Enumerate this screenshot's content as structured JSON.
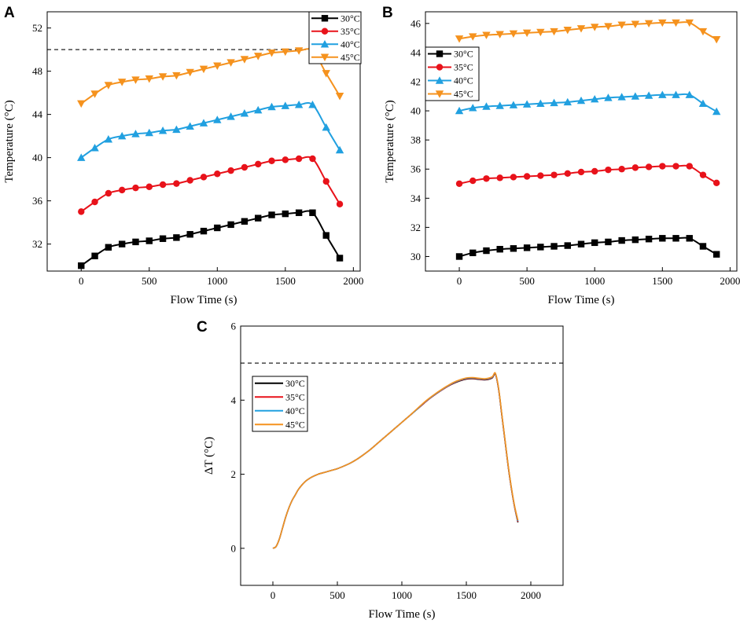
{
  "series_colors": {
    "30°C": "#000000",
    "35°C": "#e8121a",
    "40°C": "#21a0e0",
    "45°C": "#f5921e"
  },
  "chart_data": [
    {
      "panel": "A",
      "type": "line",
      "xlabel": "Flow Time (s)",
      "ylabel": "Temperature (°C)",
      "xlim": [
        -250,
        2050
      ],
      "ylim": [
        29.5,
        53.5
      ],
      "xticks": [
        0,
        500,
        1000,
        1500,
        2000
      ],
      "yticks": [
        32,
        36,
        40,
        44,
        48,
        52
      ],
      "reference_line": 50,
      "legend_position": "top-right",
      "series": [
        {
          "name": "30°C",
          "marker": "square",
          "x": [
            0,
            100,
            200,
            300,
            400,
            500,
            600,
            700,
            800,
            900,
            1000,
            1100,
            1200,
            1300,
            1400,
            1500,
            1600,
            1700,
            1800,
            1900
          ],
          "values": [
            30.0,
            30.9,
            31.7,
            32.0,
            32.2,
            32.3,
            32.5,
            32.6,
            32.9,
            33.2,
            33.5,
            33.8,
            34.1,
            34.4,
            34.7,
            34.8,
            34.9,
            34.9,
            32.8,
            30.7
          ]
        },
        {
          "name": "35°C",
          "marker": "circle",
          "x": [
            0,
            100,
            200,
            300,
            400,
            500,
            600,
            700,
            800,
            900,
            1000,
            1100,
            1200,
            1300,
            1400,
            1500,
            1600,
            1700,
            1800,
            1900
          ],
          "values": [
            35.0,
            35.9,
            36.7,
            37.0,
            37.2,
            37.3,
            37.5,
            37.6,
            37.9,
            38.2,
            38.5,
            38.8,
            39.1,
            39.4,
            39.7,
            39.8,
            39.9,
            39.9,
            37.8,
            35.7
          ]
        },
        {
          "name": "40°C",
          "marker": "triangle-up",
          "x": [
            0,
            100,
            200,
            300,
            400,
            500,
            600,
            700,
            800,
            900,
            1000,
            1100,
            1200,
            1300,
            1400,
            1500,
            1600,
            1700,
            1800,
            1900
          ],
          "values": [
            40.0,
            40.9,
            41.7,
            42.0,
            42.2,
            42.3,
            42.5,
            42.6,
            42.9,
            43.2,
            43.5,
            43.8,
            44.1,
            44.4,
            44.7,
            44.8,
            44.9,
            44.9,
            42.8,
            40.7
          ]
        },
        {
          "name": "45°C",
          "marker": "triangle-down",
          "x": [
            0,
            100,
            200,
            300,
            400,
            500,
            600,
            700,
            800,
            900,
            1000,
            1100,
            1200,
            1300,
            1400,
            1500,
            1600,
            1700,
            1800,
            1900
          ],
          "values": [
            45.0,
            45.9,
            46.7,
            47.0,
            47.2,
            47.3,
            47.5,
            47.6,
            47.9,
            48.2,
            48.5,
            48.8,
            49.1,
            49.4,
            49.7,
            49.8,
            49.9,
            49.9,
            47.8,
            45.7
          ]
        }
      ]
    },
    {
      "panel": "B",
      "type": "line",
      "xlabel": "Flow Time (s)",
      "ylabel": "Temperature (°C)",
      "xlim": [
        -250,
        2050
      ],
      "ylim": [
        29.0,
        46.8
      ],
      "xticks": [
        0,
        500,
        1000,
        1500,
        2000
      ],
      "yticks": [
        30,
        32,
        34,
        36,
        38,
        40,
        42,
        44,
        46
      ],
      "legend_position": "top-left",
      "series": [
        {
          "name": "30°C",
          "marker": "square",
          "x": [
            0,
            100,
            200,
            300,
            400,
            500,
            600,
            700,
            800,
            900,
            1000,
            1100,
            1200,
            1300,
            1400,
            1500,
            1600,
            1700,
            1800,
            1900
          ],
          "values": [
            30.0,
            30.25,
            30.4,
            30.5,
            30.55,
            30.6,
            30.65,
            30.7,
            30.75,
            30.85,
            30.95,
            31.0,
            31.1,
            31.15,
            31.2,
            31.25,
            31.25,
            31.25,
            30.7,
            30.15
          ]
        },
        {
          "name": "35°C",
          "marker": "circle",
          "x": [
            0,
            100,
            200,
            300,
            400,
            500,
            600,
            700,
            800,
            900,
            1000,
            1100,
            1200,
            1300,
            1400,
            1500,
            1600,
            1700,
            1800,
            1900
          ],
          "values": [
            35.0,
            35.2,
            35.35,
            35.4,
            35.45,
            35.5,
            35.55,
            35.6,
            35.7,
            35.8,
            35.85,
            35.95,
            36.0,
            36.1,
            36.15,
            36.2,
            36.2,
            36.2,
            35.6,
            35.05
          ]
        },
        {
          "name": "40°C",
          "marker": "triangle-up",
          "x": [
            0,
            100,
            200,
            300,
            400,
            500,
            600,
            700,
            800,
            900,
            1000,
            1100,
            1200,
            1300,
            1400,
            1500,
            1600,
            1700,
            1800,
            1900
          ],
          "values": [
            40.0,
            40.2,
            40.3,
            40.35,
            40.4,
            40.45,
            40.5,
            40.55,
            40.6,
            40.7,
            40.8,
            40.9,
            40.95,
            41.0,
            41.05,
            41.1,
            41.1,
            41.1,
            40.5,
            39.95
          ]
        },
        {
          "name": "45°C",
          "marker": "triangle-down",
          "x": [
            0,
            100,
            200,
            300,
            400,
            500,
            600,
            700,
            800,
            900,
            1000,
            1100,
            1200,
            1300,
            1400,
            1500,
            1600,
            1700,
            1800,
            1900
          ],
          "values": [
            44.95,
            45.1,
            45.2,
            45.25,
            45.3,
            45.35,
            45.4,
            45.45,
            45.55,
            45.65,
            45.75,
            45.8,
            45.9,
            45.95,
            46.0,
            46.05,
            46.05,
            46.05,
            45.45,
            44.9
          ]
        }
      ]
    },
    {
      "panel": "C",
      "type": "line",
      "xlabel": "Flow Time (s)",
      "ylabel": "ΔT (°C)",
      "xlim": [
        -250,
        2250
      ],
      "ylim": [
        -1,
        6
      ],
      "xticks": [
        0,
        500,
        1000,
        1500,
        2000
      ],
      "yticks": [
        0,
        2,
        4,
        6
      ],
      "reference_line": 5,
      "legend_position": "center-left",
      "series": [
        {
          "name": "30°C",
          "marker": "none",
          "x": [
            0,
            25,
            50,
            75,
            100,
            125,
            150,
            175,
            200,
            250,
            300,
            350,
            400,
            450,
            500,
            550,
            600,
            650,
            700,
            750,
            800,
            850,
            900,
            950,
            1000,
            1050,
            1100,
            1150,
            1200,
            1250,
            1300,
            1350,
            1400,
            1450,
            1500,
            1550,
            1600,
            1650,
            1700,
            1725,
            1750,
            1775,
            1800,
            1825,
            1850,
            1875,
            1900
          ],
          "values": [
            0,
            0.05,
            0.25,
            0.55,
            0.85,
            1.1,
            1.3,
            1.45,
            1.6,
            1.8,
            1.92,
            2.0,
            2.05,
            2.1,
            2.15,
            2.22,
            2.3,
            2.4,
            2.52,
            2.65,
            2.8,
            2.95,
            3.1,
            3.25,
            3.4,
            3.55,
            3.7,
            3.85,
            4.0,
            4.13,
            4.25,
            4.36,
            4.45,
            4.52,
            4.57,
            4.58,
            4.56,
            4.55,
            4.6,
            4.7,
            4.3,
            3.6,
            2.9,
            2.2,
            1.6,
            1.1,
            0.7
          ]
        },
        {
          "name": "35°C",
          "marker": "none",
          "x": [
            0,
            25,
            50,
            75,
            100,
            125,
            150,
            175,
            200,
            250,
            300,
            350,
            400,
            450,
            500,
            550,
            600,
            650,
            700,
            750,
            800,
            850,
            900,
            950,
            1000,
            1050,
            1100,
            1150,
            1200,
            1250,
            1300,
            1350,
            1400,
            1450,
            1500,
            1550,
            1600,
            1650,
            1700,
            1725,
            1750,
            1775,
            1800,
            1825,
            1850,
            1875,
            1900
          ],
          "values": [
            0,
            0.05,
            0.25,
            0.55,
            0.85,
            1.1,
            1.3,
            1.45,
            1.6,
            1.8,
            1.92,
            2.0,
            2.05,
            2.1,
            2.15,
            2.22,
            2.3,
            2.4,
            2.52,
            2.65,
            2.8,
            2.95,
            3.1,
            3.25,
            3.4,
            3.55,
            3.7,
            3.85,
            4.0,
            4.13,
            4.25,
            4.36,
            4.46,
            4.53,
            4.58,
            4.59,
            4.57,
            4.56,
            4.61,
            4.71,
            4.3,
            3.6,
            2.9,
            2.2,
            1.6,
            1.1,
            0.72
          ]
        },
        {
          "name": "40°C",
          "marker": "none",
          "x": [
            0,
            25,
            50,
            75,
            100,
            125,
            150,
            175,
            200,
            250,
            300,
            350,
            400,
            450,
            500,
            550,
            600,
            650,
            700,
            750,
            800,
            850,
            900,
            950,
            1000,
            1050,
            1100,
            1150,
            1200,
            1250,
            1300,
            1350,
            1400,
            1450,
            1500,
            1550,
            1600,
            1650,
            1700,
            1725,
            1750,
            1775,
            1800,
            1825,
            1850,
            1875,
            1900
          ],
          "values": [
            0,
            0.05,
            0.25,
            0.55,
            0.85,
            1.1,
            1.3,
            1.45,
            1.6,
            1.8,
            1.92,
            2.0,
            2.05,
            2.1,
            2.15,
            2.22,
            2.3,
            2.4,
            2.52,
            2.65,
            2.8,
            2.95,
            3.1,
            3.25,
            3.4,
            3.55,
            3.7,
            3.86,
            4.01,
            4.14,
            4.26,
            4.37,
            4.47,
            4.54,
            4.59,
            4.6,
            4.58,
            4.57,
            4.62,
            4.72,
            4.32,
            3.62,
            2.92,
            2.22,
            1.62,
            1.12,
            0.74
          ]
        },
        {
          "name": "45°C",
          "marker": "none",
          "x": [
            0,
            25,
            50,
            75,
            100,
            125,
            150,
            175,
            200,
            250,
            300,
            350,
            400,
            450,
            500,
            550,
            600,
            650,
            700,
            750,
            800,
            850,
            900,
            950,
            1000,
            1050,
            1100,
            1150,
            1200,
            1250,
            1300,
            1350,
            1400,
            1450,
            1500,
            1550,
            1600,
            1650,
            1700,
            1725,
            1750,
            1775,
            1800,
            1825,
            1850,
            1875,
            1900
          ],
          "values": [
            0,
            0.05,
            0.25,
            0.55,
            0.85,
            1.1,
            1.3,
            1.45,
            1.6,
            1.8,
            1.92,
            2.0,
            2.05,
            2.1,
            2.15,
            2.22,
            2.3,
            2.4,
            2.52,
            2.65,
            2.8,
            2.95,
            3.1,
            3.25,
            3.4,
            3.55,
            3.71,
            3.87,
            4.02,
            4.15,
            4.27,
            4.38,
            4.48,
            4.55,
            4.6,
            4.61,
            4.59,
            4.58,
            4.63,
            4.73,
            4.33,
            3.63,
            2.93,
            2.23,
            1.63,
            1.13,
            0.76
          ]
        }
      ]
    }
  ]
}
